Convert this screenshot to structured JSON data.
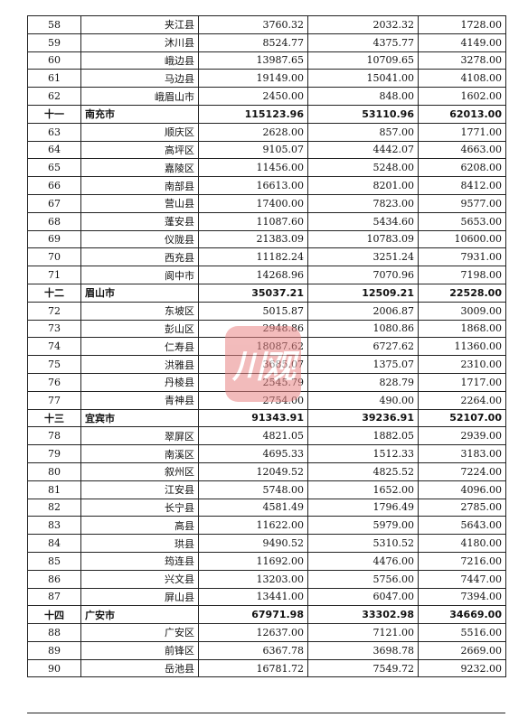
{
  "watermark_text": "川观",
  "rows": [
    {
      "idx": "58",
      "name": "夹江县",
      "total": "3760.32",
      "a": "2032.32",
      "b": "1728.00",
      "city": false
    },
    {
      "idx": "59",
      "name": "沐川县",
      "total": "8524.77",
      "a": "4375.77",
      "b": "4149.00",
      "city": false
    },
    {
      "idx": "60",
      "name": "峨边县",
      "total": "13987.65",
      "a": "10709.65",
      "b": "3278.00",
      "city": false
    },
    {
      "idx": "61",
      "name": "马边县",
      "total": "19149.00",
      "a": "15041.00",
      "b": "4108.00",
      "city": false
    },
    {
      "idx": "62",
      "name": "峨眉山市",
      "total": "2450.00",
      "a": "848.00",
      "b": "1602.00",
      "city": false
    },
    {
      "idx": "十一",
      "name": "南充市",
      "total": "115123.96",
      "a": "53110.96",
      "b": "62013.00",
      "city": true
    },
    {
      "idx": "63",
      "name": "顺庆区",
      "total": "2628.00",
      "a": "857.00",
      "b": "1771.00",
      "city": false
    },
    {
      "idx": "64",
      "name": "高坪区",
      "total": "9105.07",
      "a": "4442.07",
      "b": "4663.00",
      "city": false
    },
    {
      "idx": "65",
      "name": "嘉陵区",
      "total": "11456.00",
      "a": "5248.00",
      "b": "6208.00",
      "city": false
    },
    {
      "idx": "66",
      "name": "南部县",
      "total": "16613.00",
      "a": "8201.00",
      "b": "8412.00",
      "city": false
    },
    {
      "idx": "67",
      "name": "营山县",
      "total": "17400.00",
      "a": "7823.00",
      "b": "9577.00",
      "city": false
    },
    {
      "idx": "68",
      "name": "蓬安县",
      "total": "11087.60",
      "a": "5434.60",
      "b": "5653.00",
      "city": false
    },
    {
      "idx": "69",
      "name": "仪陇县",
      "total": "21383.09",
      "a": "10783.09",
      "b": "10600.00",
      "city": false
    },
    {
      "idx": "70",
      "name": "西充县",
      "total": "11182.24",
      "a": "3251.24",
      "b": "7931.00",
      "city": false
    },
    {
      "idx": "71",
      "name": "阆中市",
      "total": "14268.96",
      "a": "7070.96",
      "b": "7198.00",
      "city": false
    },
    {
      "idx": "十二",
      "name": "眉山市",
      "total": "35037.21",
      "a": "12509.21",
      "b": "22528.00",
      "city": true
    },
    {
      "idx": "72",
      "name": "东坡区",
      "total": "5015.87",
      "a": "2006.87",
      "b": "3009.00",
      "city": false
    },
    {
      "idx": "73",
      "name": "彭山区",
      "total": "2948.86",
      "a": "1080.86",
      "b": "1868.00",
      "city": false
    },
    {
      "idx": "74",
      "name": "仁寿县",
      "total": "18087.62",
      "a": "6727.62",
      "b": "11360.00",
      "city": false
    },
    {
      "idx": "75",
      "name": "洪雅县",
      "total": "3685.07",
      "a": "1375.07",
      "b": "2310.00",
      "city": false
    },
    {
      "idx": "76",
      "name": "丹棱县",
      "total": "2545.79",
      "a": "828.79",
      "b": "1717.00",
      "city": false
    },
    {
      "idx": "77",
      "name": "青神县",
      "total": "2754.00",
      "a": "490.00",
      "b": "2264.00",
      "city": false
    },
    {
      "idx": "十三",
      "name": "宜宾市",
      "total": "91343.91",
      "a": "39236.91",
      "b": "52107.00",
      "city": true
    },
    {
      "idx": "78",
      "name": "翠屏区",
      "total": "4821.05",
      "a": "1882.05",
      "b": "2939.00",
      "city": false
    },
    {
      "idx": "79",
      "name": "南溪区",
      "total": "4695.33",
      "a": "1512.33",
      "b": "3183.00",
      "city": false
    },
    {
      "idx": "80",
      "name": "叙州区",
      "total": "12049.52",
      "a": "4825.52",
      "b": "7224.00",
      "city": false
    },
    {
      "idx": "81",
      "name": "江安县",
      "total": "5748.00",
      "a": "1652.00",
      "b": "4096.00",
      "city": false
    },
    {
      "idx": "82",
      "name": "长宁县",
      "total": "4581.49",
      "a": "1796.49",
      "b": "2785.00",
      "city": false
    },
    {
      "idx": "83",
      "name": "高县",
      "total": "11622.00",
      "a": "5979.00",
      "b": "5643.00",
      "city": false
    },
    {
      "idx": "84",
      "name": "珙县",
      "total": "9490.52",
      "a": "5310.52",
      "b": "4180.00",
      "city": false
    },
    {
      "idx": "85",
      "name": "筠连县",
      "total": "11692.00",
      "a": "4476.00",
      "b": "7216.00",
      "city": false
    },
    {
      "idx": "86",
      "name": "兴文县",
      "total": "13203.00",
      "a": "5756.00",
      "b": "7447.00",
      "city": false
    },
    {
      "idx": "87",
      "name": "屏山县",
      "total": "13441.00",
      "a": "6047.00",
      "b": "7394.00",
      "city": false
    },
    {
      "idx": "十四",
      "name": "广安市",
      "total": "67971.98",
      "a": "33302.98",
      "b": "34669.00",
      "city": true
    },
    {
      "idx": "88",
      "name": "广安区",
      "total": "12637.00",
      "a": "7121.00",
      "b": "5516.00",
      "city": false
    },
    {
      "idx": "89",
      "name": "前锋区",
      "total": "6367.78",
      "a": "3698.78",
      "b": "2669.00",
      "city": false
    },
    {
      "idx": "90",
      "name": "岳池县",
      "total": "16781.72",
      "a": "7549.72",
      "b": "9232.00",
      "city": false
    }
  ]
}
